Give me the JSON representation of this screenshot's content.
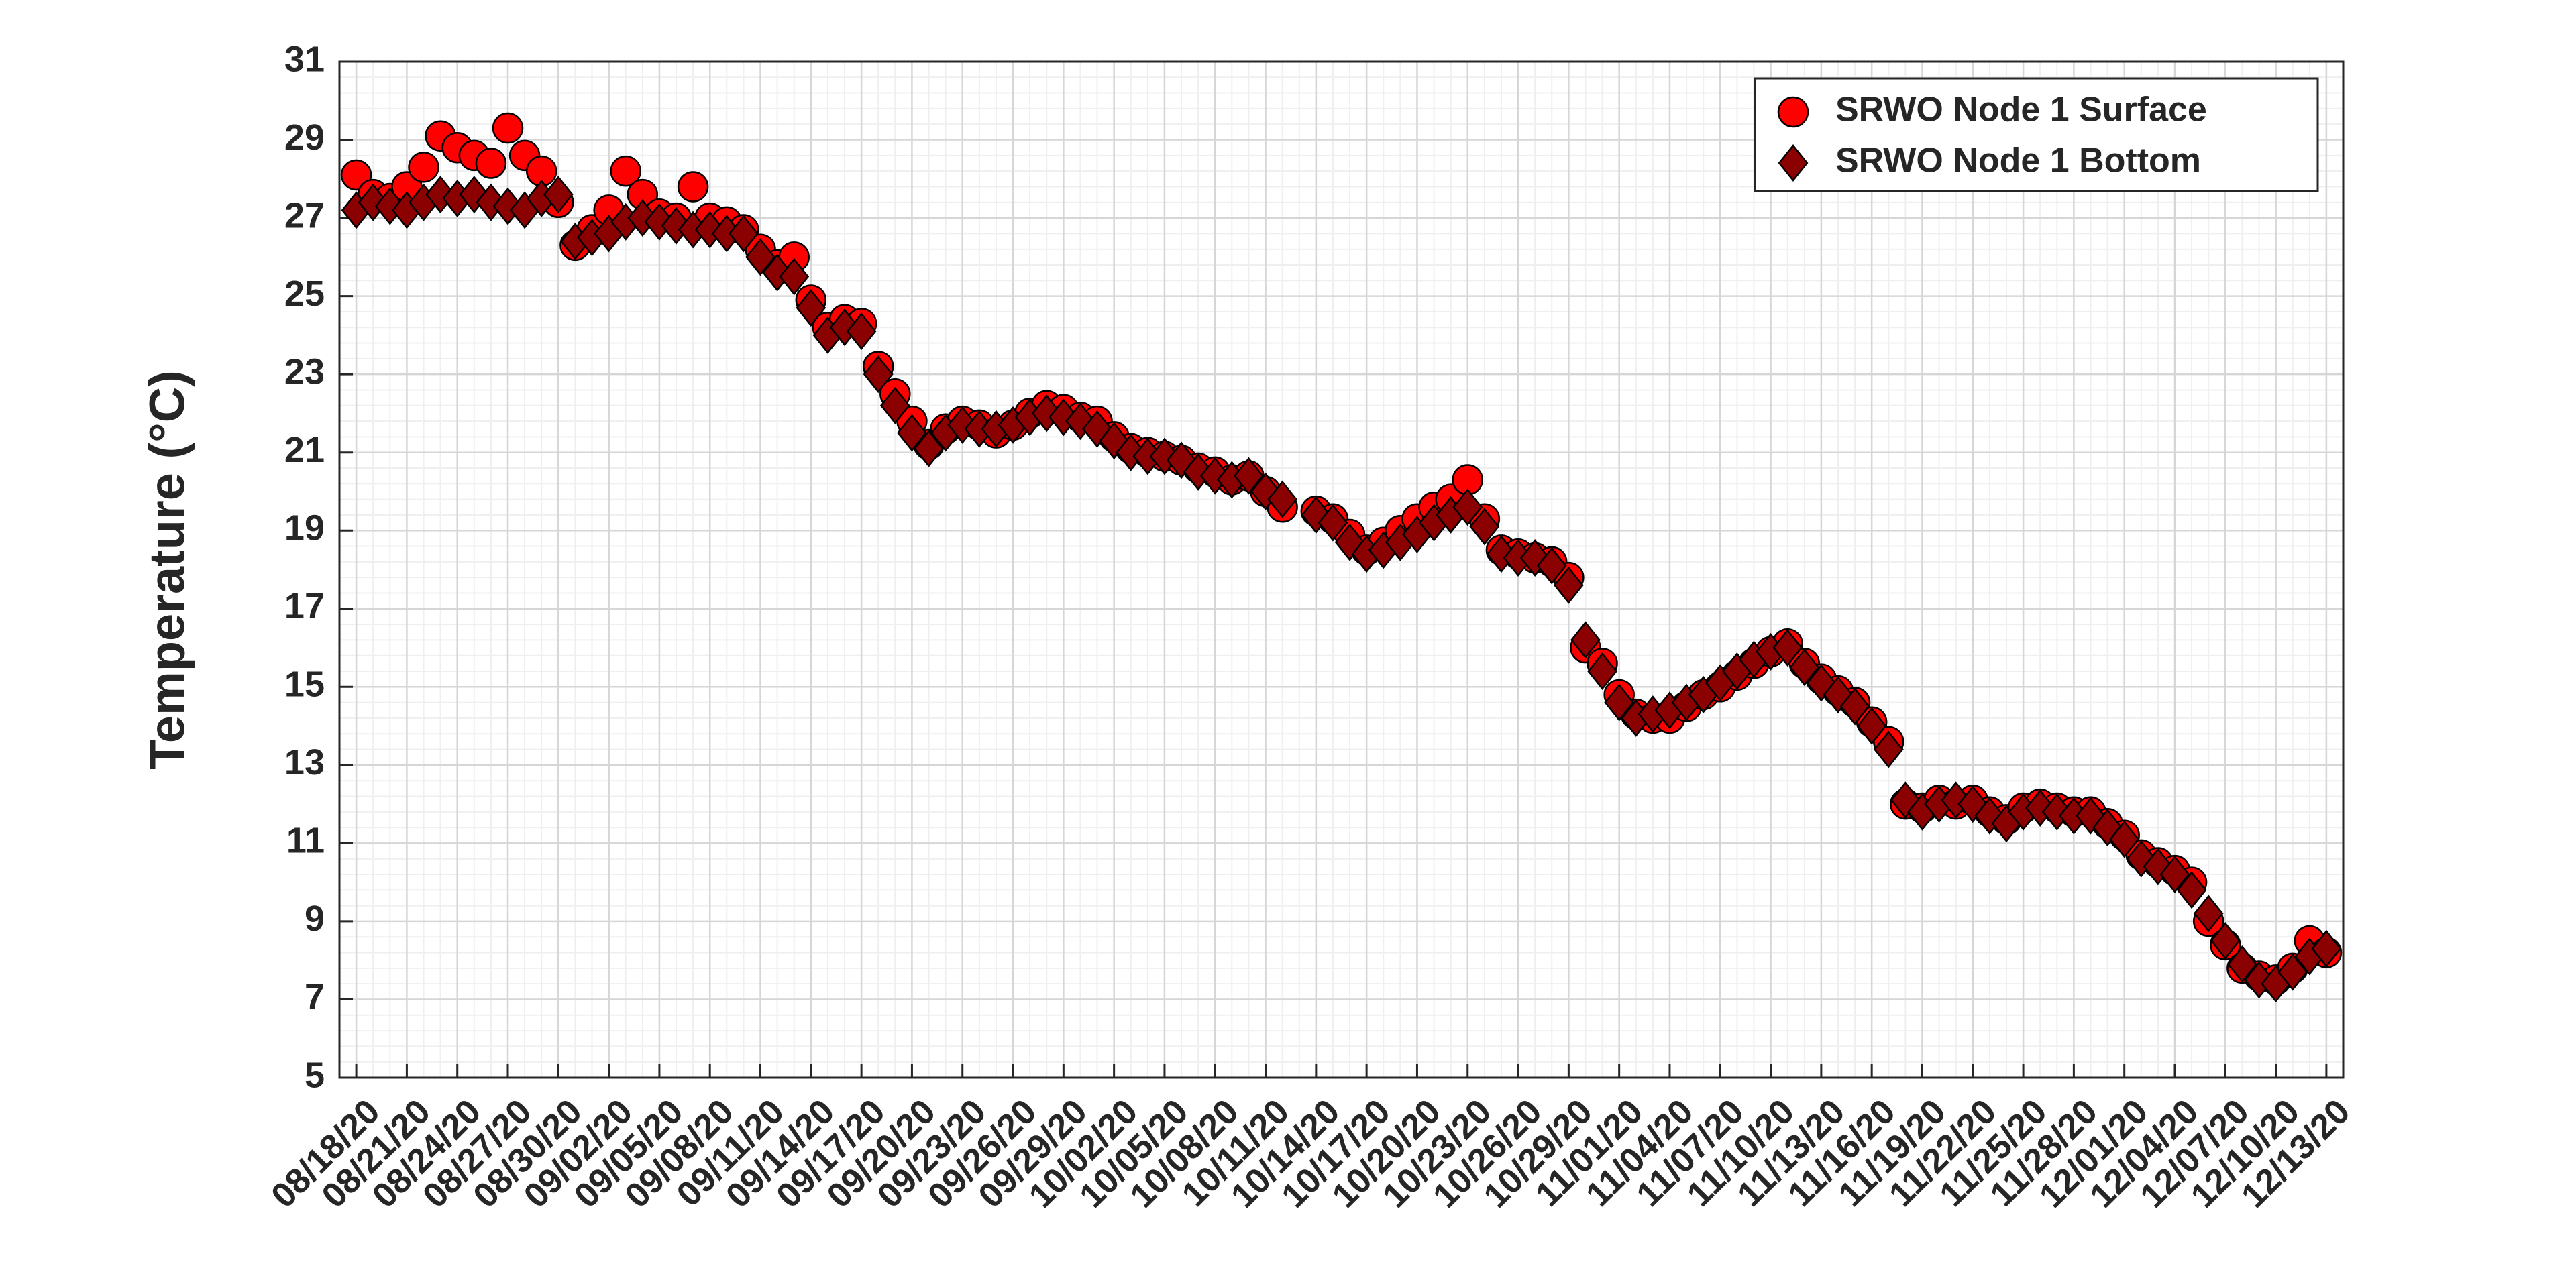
{
  "chart_data": {
    "type": "scatter",
    "ylabel": "Temperature (°C)",
    "x": [
      "08/18/20",
      "08/19/20",
      "08/20/20",
      "08/21/20",
      "08/22/20",
      "08/23/20",
      "08/24/20",
      "08/25/20",
      "08/26/20",
      "08/27/20",
      "08/28/20",
      "08/29/20",
      "08/30/20",
      "08/31/20",
      "09/01/20",
      "09/02/20",
      "09/03/20",
      "09/04/20",
      "09/05/20",
      "09/06/20",
      "09/07/20",
      "09/08/20",
      "09/09/20",
      "09/10/20",
      "09/11/20",
      "09/12/20",
      "09/13/20",
      "09/14/20",
      "09/15/20",
      "09/16/20",
      "09/17/20",
      "09/18/20",
      "09/19/20",
      "09/20/20",
      "09/21/20",
      "09/22/20",
      "09/23/20",
      "09/24/20",
      "09/25/20",
      "09/26/20",
      "09/27/20",
      "09/28/20",
      "09/29/20",
      "09/30/20",
      "10/01/20",
      "10/02/20",
      "10/03/20",
      "10/04/20",
      "10/05/20",
      "10/06/20",
      "10/07/20",
      "10/08/20",
      "10/09/20",
      "10/10/20",
      "10/11/20",
      "10/12/20",
      "10/13/20",
      "10/14/20",
      "10/15/20",
      "10/16/20",
      "10/17/20",
      "10/18/20",
      "10/19/20",
      "10/20/20",
      "10/21/20",
      "10/22/20",
      "10/23/20",
      "10/24/20",
      "10/25/20",
      "10/26/20",
      "10/27/20",
      "10/28/20",
      "10/29/20",
      "10/30/20",
      "10/31/20",
      "11/01/20",
      "11/02/20",
      "11/03/20",
      "11/04/20",
      "11/05/20",
      "11/06/20",
      "11/07/20",
      "11/08/20",
      "11/09/20",
      "11/10/20",
      "11/11/20",
      "11/12/20",
      "11/13/20",
      "11/14/20",
      "11/15/20",
      "11/16/20",
      "11/17/20",
      "11/18/20",
      "11/19/20",
      "11/20/20",
      "11/21/20",
      "11/22/20",
      "11/23/20",
      "11/24/20",
      "11/25/20",
      "11/26/20",
      "11/27/20",
      "11/28/20",
      "11/29/20",
      "11/30/20",
      "12/01/20",
      "12/02/20",
      "12/03/20",
      "12/04/20",
      "12/05/20",
      "12/06/20",
      "12/07/20",
      "12/08/20",
      "12/09/20",
      "12/10/20",
      "12/11/20",
      "12/12/20",
      "12/13/20"
    ],
    "series": [
      {
        "name": "SRWO Node 1 Surface",
        "color": "#ff0000",
        "marker": "circle",
        "values": [
          28.1,
          27.6,
          27.5,
          27.8,
          28.3,
          29.1,
          28.8,
          28.6,
          28.4,
          29.3,
          28.6,
          28.2,
          27.4,
          26.3,
          26.7,
          27.2,
          28.2,
          27.6,
          27.1,
          27.0,
          27.8,
          27.0,
          26.9,
          26.7,
          26.2,
          25.8,
          26.0,
          24.9,
          24.2,
          24.4,
          24.3,
          23.2,
          22.5,
          21.8,
          21.2,
          21.6,
          21.8,
          21.7,
          21.5,
          21.7,
          22.0,
          22.2,
          22.1,
          21.9,
          21.8,
          21.4,
          21.1,
          21.0,
          20.9,
          20.8,
          20.6,
          20.5,
          20.3,
          20.4,
          20.0,
          19.6,
          null,
          19.5,
          19.3,
          18.9,
          18.5,
          18.7,
          19.0,
          19.3,
          19.6,
          19.8,
          20.3,
          19.3,
          18.5,
          18.4,
          18.3,
          18.2,
          17.8,
          16.0,
          15.6,
          14.8,
          14.3,
          14.2,
          14.2,
          14.5,
          14.8,
          15.0,
          15.3,
          15.6,
          15.9,
          16.1,
          15.6,
          15.2,
          14.9,
          14.6,
          14.1,
          13.6,
          12.0,
          11.9,
          12.1,
          12.0,
          12.1,
          11.8,
          11.6,
          11.9,
          12.0,
          11.9,
          11.8,
          11.8,
          11.5,
          11.2,
          10.7,
          10.5,
          10.3,
          10.0,
          9.0,
          8.4,
          7.8,
          7.6,
          7.5,
          7.8,
          8.5,
          8.2
        ]
      },
      {
        "name": "SRWO Node 1 Bottom",
        "color": "#8b0000",
        "marker": "diamond",
        "values": [
          27.2,
          27.4,
          27.3,
          27.2,
          27.4,
          27.6,
          27.5,
          27.6,
          27.4,
          27.3,
          27.2,
          27.5,
          27.6,
          26.4,
          26.5,
          26.6,
          26.9,
          27.0,
          26.9,
          26.8,
          26.7,
          26.7,
          26.6,
          26.6,
          26.0,
          25.6,
          25.5,
          24.7,
          24.0,
          24.2,
          24.1,
          23.0,
          22.2,
          21.5,
          21.1,
          21.5,
          21.7,
          21.6,
          21.6,
          21.7,
          21.9,
          22.0,
          21.9,
          21.8,
          21.6,
          21.3,
          21.0,
          20.9,
          20.9,
          20.8,
          20.5,
          20.4,
          20.3,
          20.4,
          20.0,
          19.8,
          null,
          19.4,
          19.2,
          18.7,
          18.4,
          18.5,
          18.7,
          18.9,
          19.2,
          19.4,
          19.6,
          19.1,
          18.4,
          18.3,
          18.3,
          18.1,
          17.6,
          16.2,
          15.4,
          14.6,
          14.2,
          14.3,
          14.4,
          14.6,
          14.8,
          15.1,
          15.4,
          15.7,
          15.9,
          16.0,
          15.5,
          15.1,
          14.8,
          14.5,
          14.0,
          13.4,
          12.1,
          11.8,
          12.0,
          12.1,
          12.0,
          11.7,
          11.5,
          11.8,
          11.9,
          11.8,
          11.7,
          11.7,
          11.4,
          11.1,
          10.6,
          10.4,
          10.2,
          9.8,
          9.2,
          8.5,
          7.9,
          7.5,
          7.4,
          7.7,
          8.1,
          8.3
        ]
      }
    ],
    "xlim": [
      "08/17/20",
      "12/14/20"
    ],
    "xticks": [
      "08/18/20",
      "08/21/20",
      "08/24/20",
      "08/27/20",
      "08/30/20",
      "09/02/20",
      "09/05/20",
      "09/08/20",
      "09/11/20",
      "09/14/20",
      "09/17/20",
      "09/20/20",
      "09/23/20",
      "09/26/20",
      "09/29/20",
      "10/02/20",
      "10/05/20",
      "10/08/20",
      "10/11/20",
      "10/14/20",
      "10/17/20",
      "10/20/20",
      "10/23/20",
      "10/26/20",
      "10/29/20",
      "11/01/20",
      "11/04/20",
      "11/07/20",
      "11/10/20",
      "11/13/20",
      "11/16/20",
      "11/19/20",
      "11/22/20",
      "11/25/20",
      "11/28/20",
      "12/01/20",
      "12/04/20",
      "12/07/20",
      "12/10/20",
      "12/13/20"
    ],
    "ylim": [
      5,
      31
    ],
    "yticks": [
      5,
      7,
      9,
      11,
      13,
      15,
      17,
      19,
      21,
      23,
      25,
      27,
      29,
      31
    ],
    "grid": true,
    "minor_grid": true,
    "legend": "northeast"
  }
}
